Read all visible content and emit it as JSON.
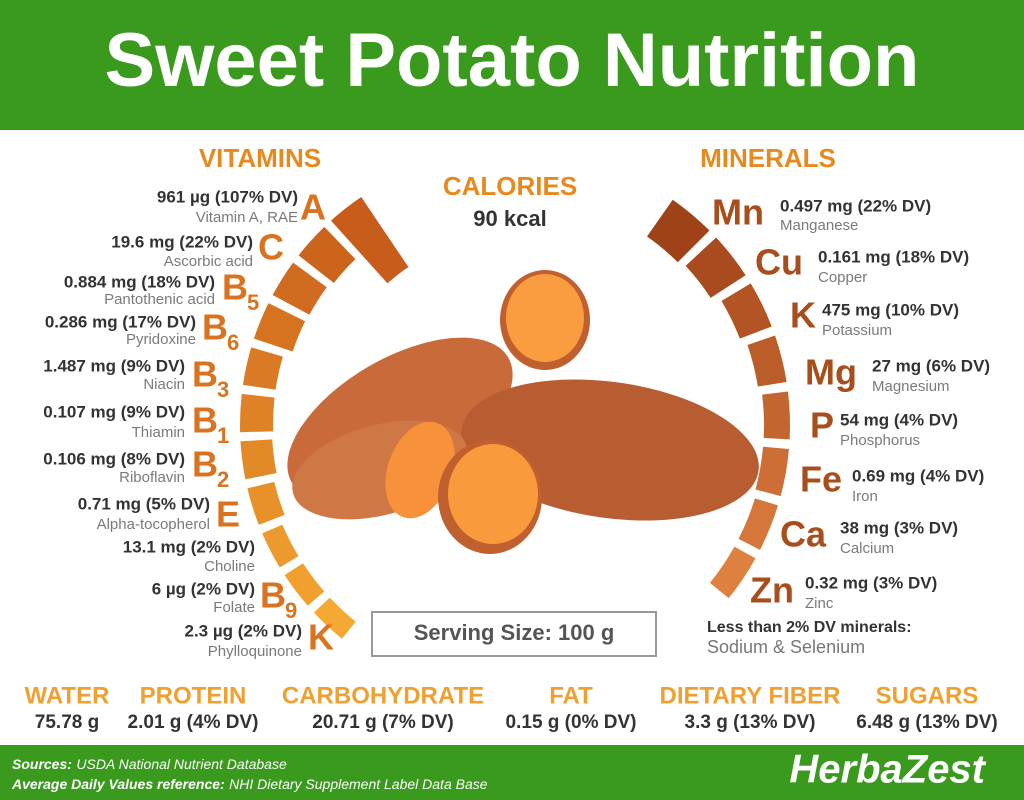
{
  "header": {
    "title": "Sweet Potato Nutrition"
  },
  "calories": {
    "label": "CALORIES",
    "value": "90 kcal"
  },
  "vitamins": {
    "heading": "VITAMINS",
    "items": [
      {
        "symbol": "A",
        "amount": "961 µg (107% DV)",
        "name": "Vitamin A, RAE",
        "dv": 107
      },
      {
        "symbol": "C",
        "amount": "19.6 mg (22% DV)",
        "name": "Ascorbic acid",
        "dv": 22
      },
      {
        "symbol": "B",
        "subscript": "5",
        "amount": "0.884 mg (18% DV)",
        "name": "Pantothenic acid",
        "dv": 18
      },
      {
        "symbol": "B",
        "subscript": "6",
        "amount": "0.286 mg (17% DV)",
        "name": "Pyridoxine",
        "dv": 17
      },
      {
        "symbol": "B",
        "subscript": "3",
        "amount": "1.487 mg (9% DV)",
        "name": "Niacin",
        "dv": 9
      },
      {
        "symbol": "B",
        "subscript": "1",
        "amount": "0.107 mg (9% DV)",
        "name": "Thiamin",
        "dv": 9
      },
      {
        "symbol": "B",
        "subscript": "2",
        "amount": "0.106 mg (8% DV)",
        "name": "Riboflavin",
        "dv": 8
      },
      {
        "symbol": "E",
        "amount": "0.71 mg (5% DV)",
        "name": "Alpha-tocopherol",
        "dv": 5
      },
      {
        "amount": "13.1 mg (2% DV)",
        "name": "Choline",
        "dv": 2
      },
      {
        "symbol": "B",
        "subscript": "9",
        "amount": "6 µg (2% DV)",
        "name": "Folate",
        "dv": 2
      },
      {
        "symbol": "K",
        "amount": "2.3 µg (2% DV)",
        "name": "Phylloquinone",
        "dv": 2
      }
    ]
  },
  "minerals": {
    "heading": "MINERALS",
    "items": [
      {
        "symbol": "Mn",
        "amount": "0.497 mg (22% DV)",
        "name": "Manganese",
        "dv": 22
      },
      {
        "symbol": "Cu",
        "amount": "0.161 mg (18% DV)",
        "name": "Copper",
        "dv": 18
      },
      {
        "symbol": "K",
        "amount": "475 mg (10% DV)",
        "name": "Potassium",
        "dv": 10
      },
      {
        "symbol": "Mg",
        "amount": "27 mg (6% DV)",
        "name": "Magnesium",
        "dv": 6
      },
      {
        "symbol": "P",
        "amount": "54 mg (4% DV)",
        "name": "Phosphorus",
        "dv": 4
      },
      {
        "symbol": "Fe",
        "amount": "0.69 mg (4% DV)",
        "name": "Iron",
        "dv": 4
      },
      {
        "symbol": "Ca",
        "amount": "38 mg (3% DV)",
        "name": "Calcium",
        "dv": 3
      },
      {
        "symbol": "Zn",
        "amount": "0.32 mg (3% DV)",
        "name": "Zinc",
        "dv": 3
      }
    ],
    "note": "Less than 2% DV minerals:",
    "note_detail": "Sodium & Selenium"
  },
  "serving": "Serving Size: 100 g",
  "macros": [
    {
      "label": "WATER",
      "value": "75.78 g"
    },
    {
      "label": "PROTEIN",
      "value": "2.01 g (4% DV)"
    },
    {
      "label": "CARBOHYDRATE",
      "value": "20.71 g (7% DV)"
    },
    {
      "label": "FAT",
      "value": "0.15 g (0% DV)"
    },
    {
      "label": "DIETARY FIBER",
      "value": "3.3 g (13% DV)"
    },
    {
      "label": "SUGARS",
      "value": "6.48 g (13% DV)"
    }
  ],
  "footer": {
    "sources_label": "Sources:",
    "sources": "USDA National Nutrient Database",
    "reference_label": "Average Daily Values reference:",
    "reference": "NHI Dietary Supplement Label Data Base",
    "logo": "HerbaZest"
  }
}
